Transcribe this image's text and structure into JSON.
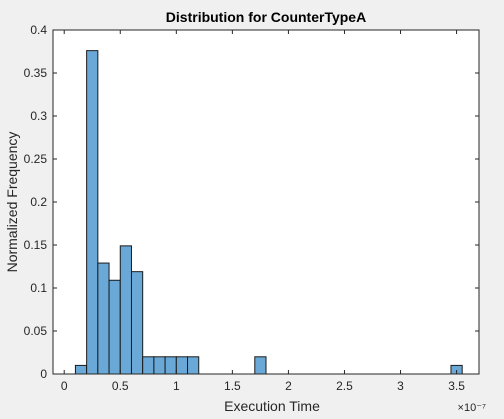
{
  "chart_data": {
    "type": "bar",
    "title": "Distribution for CounterTypeA",
    "xlabel": "Execution Time",
    "ylabel": "Normalized Frequency",
    "x_exponent": "×10⁻⁷",
    "xlim": [
      -0.1,
      3.7
    ],
    "ylim": [
      0,
      0.4
    ],
    "xticks": [
      0,
      0.5,
      1,
      1.5,
      2,
      2.5,
      3,
      3.5
    ],
    "xtick_labels": [
      "0",
      "0.5",
      "1",
      "1.5",
      "2",
      "2.5",
      "3",
      "3.5"
    ],
    "yticks": [
      0,
      0.05,
      0.1,
      0.15,
      0.2,
      0.25,
      0.3,
      0.35,
      0.4
    ],
    "ytick_labels": [
      "0",
      "0.05",
      "0.1",
      "0.15",
      "0.2",
      "0.25",
      "0.3",
      "0.35",
      "0.4"
    ],
    "bin_width": 0.1,
    "bin_edges_start": [
      0.1,
      0.2,
      0.3,
      0.4,
      0.5,
      0.6,
      0.7,
      0.8,
      0.9,
      1.0,
      1.1,
      1.7,
      3.45
    ],
    "values": [
      0.01,
      0.376,
      0.129,
      0.109,
      0.149,
      0.119,
      0.02,
      0.02,
      0.02,
      0.02,
      0.02,
      0.02,
      0.01
    ],
    "grid": false,
    "legend": "none",
    "bar_color": "#6aa9d7",
    "bar_edge_color": "#1a1a1a"
  }
}
